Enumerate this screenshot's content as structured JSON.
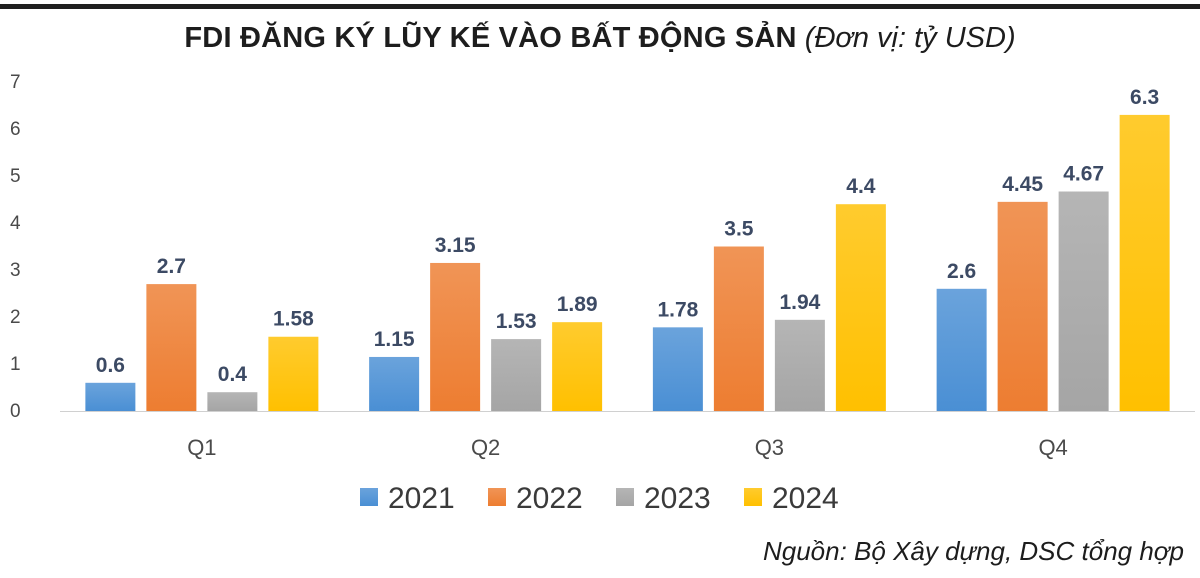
{
  "title": {
    "main": "FDI ĐĂNG KÝ LŨY KẾ VÀO BẤT ĐỘNG SẢN",
    "unit": "(Đơn vị: tỷ USD)"
  },
  "source": "Nguồn: Bộ Xây dựng, DSC tổng hợp",
  "colors": {
    "2021": "#4a8fd4",
    "2022": "#ed7d31",
    "2023": "#a5a5a5",
    "2024": "#ffc000",
    "value_label": "#3c4a64",
    "axis_text": "#4a4a4a",
    "baseline": "#d0d0d0"
  },
  "chart_data": {
    "type": "bar",
    "title": "FDI ĐĂNG KÝ LŨY KẾ VÀO BẤT ĐỘNG SẢN",
    "categories": [
      "Q1",
      "Q2",
      "Q3",
      "Q4"
    ],
    "series": [
      {
        "name": "2021",
        "values": [
          0.6,
          1.15,
          1.78,
          2.6
        ]
      },
      {
        "name": "2022",
        "values": [
          2.7,
          3.15,
          3.5,
          4.45
        ]
      },
      {
        "name": "2023",
        "values": [
          0.4,
          1.53,
          1.94,
          4.67
        ]
      },
      {
        "name": "2024",
        "values": [
          1.58,
          1.89,
          4.4,
          6.3
        ]
      }
    ],
    "yticks": [
      "0",
      "1",
      "2",
      "3",
      "4",
      "5",
      "6",
      "7"
    ],
    "ylim": [
      0,
      7
    ],
    "grid": false,
    "legend": "bottom"
  }
}
